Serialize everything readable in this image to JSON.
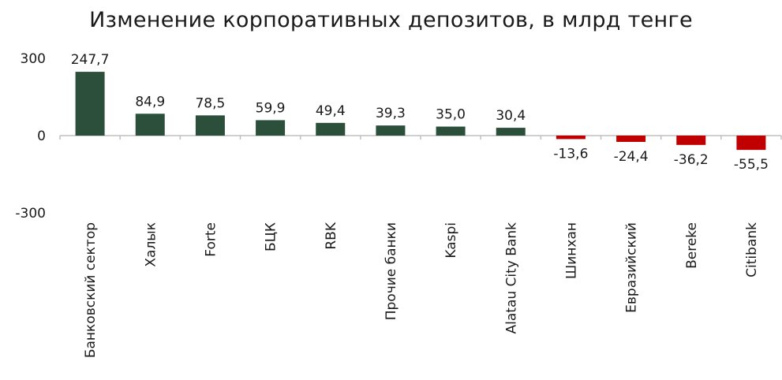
{
  "chart_data": {
    "type": "bar",
    "title": "Изменение корпоративных депозитов, в млрд тенге",
    "xlabel": "",
    "ylabel": "",
    "categories": [
      "Банковский сектор",
      "Халык",
      "Forte",
      "БЦК",
      "RBK",
      "Прочие банки",
      "Kaspi",
      "Alatau City Bank",
      "Шинхан",
      "Евразийский",
      "Bereke",
      "Citibank"
    ],
    "values": [
      247.7,
      84.9,
      78.5,
      59.9,
      49.4,
      39.3,
      35.0,
      30.4,
      -13.6,
      -24.4,
      -36.2,
      -55.5
    ],
    "data_labels": [
      "247,7",
      "84,9",
      "78,5",
      "59,9",
      "49,4",
      "39,3",
      "35,0",
      "30,4",
      "-13,6",
      "-24,4",
      "-36,2",
      "-55,5"
    ],
    "yticks": [
      300,
      0,
      -300
    ],
    "ytick_labels": [
      "300",
      "0",
      "-300"
    ],
    "ylim": [
      -300,
      300
    ],
    "grid": false,
    "legend": "none",
    "colors": {
      "positive": "#2b4f3a",
      "negative": "#c00000",
      "axis": "#bfbfbf"
    }
  }
}
